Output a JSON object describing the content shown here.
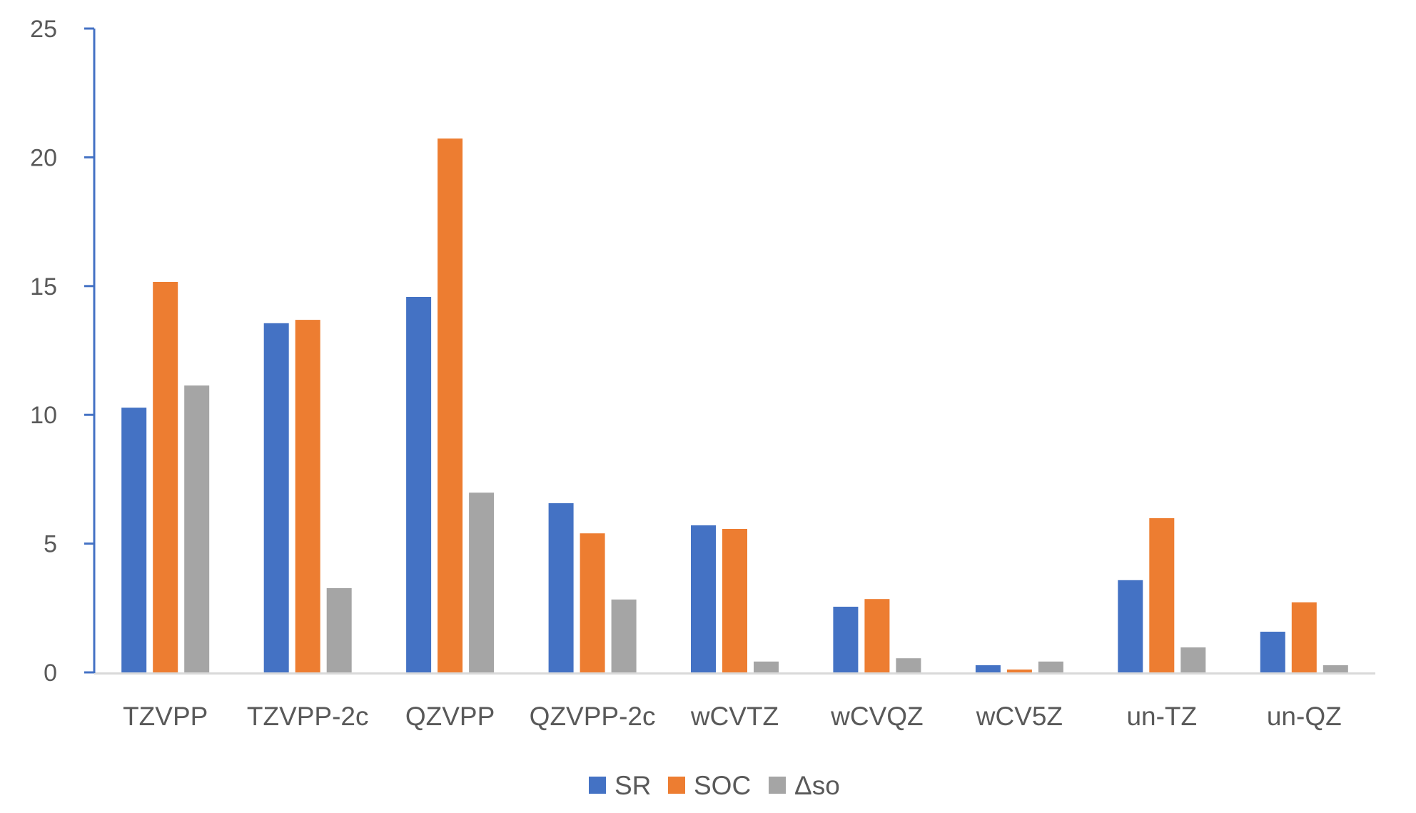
{
  "chart_data": {
    "type": "bar",
    "title": "",
    "xlabel": "",
    "ylabel": "",
    "ylim": [
      0,
      25
    ],
    "yticks": [
      "0",
      "5",
      "10",
      "15",
      "20",
      "25"
    ],
    "grid": false,
    "legend_position": "bottom",
    "categories": [
      "TZVPP",
      "TZVPP-2c",
      "QZVPP",
      "QZVPP-2c",
      "wCVTZ",
      "wCVQZ",
      "wCV5Z",
      "un-TZ",
      "un-QZ"
    ],
    "series": [
      {
        "name": "SR",
        "color": "#4472C4",
        "values": [
          10.28,
          13.56,
          14.58,
          6.57,
          5.71,
          2.55,
          0.28,
          3.58,
          1.58
        ]
      },
      {
        "name": "SOC",
        "color": "#ED7D31",
        "values": [
          15.16,
          13.69,
          20.73,
          5.4,
          5.57,
          2.85,
          0.11,
          5.99,
          2.72
        ]
      },
      {
        "name": "Δso",
        "color": "#A5A5A5",
        "values": [
          11.14,
          3.27,
          6.98,
          2.83,
          0.42,
          0.55,
          0.42,
          0.97,
          0.28
        ]
      }
    ]
  },
  "colors": {
    "axis": "#4472C4",
    "baseline": "#D9D9D9",
    "text": "#595959"
  }
}
